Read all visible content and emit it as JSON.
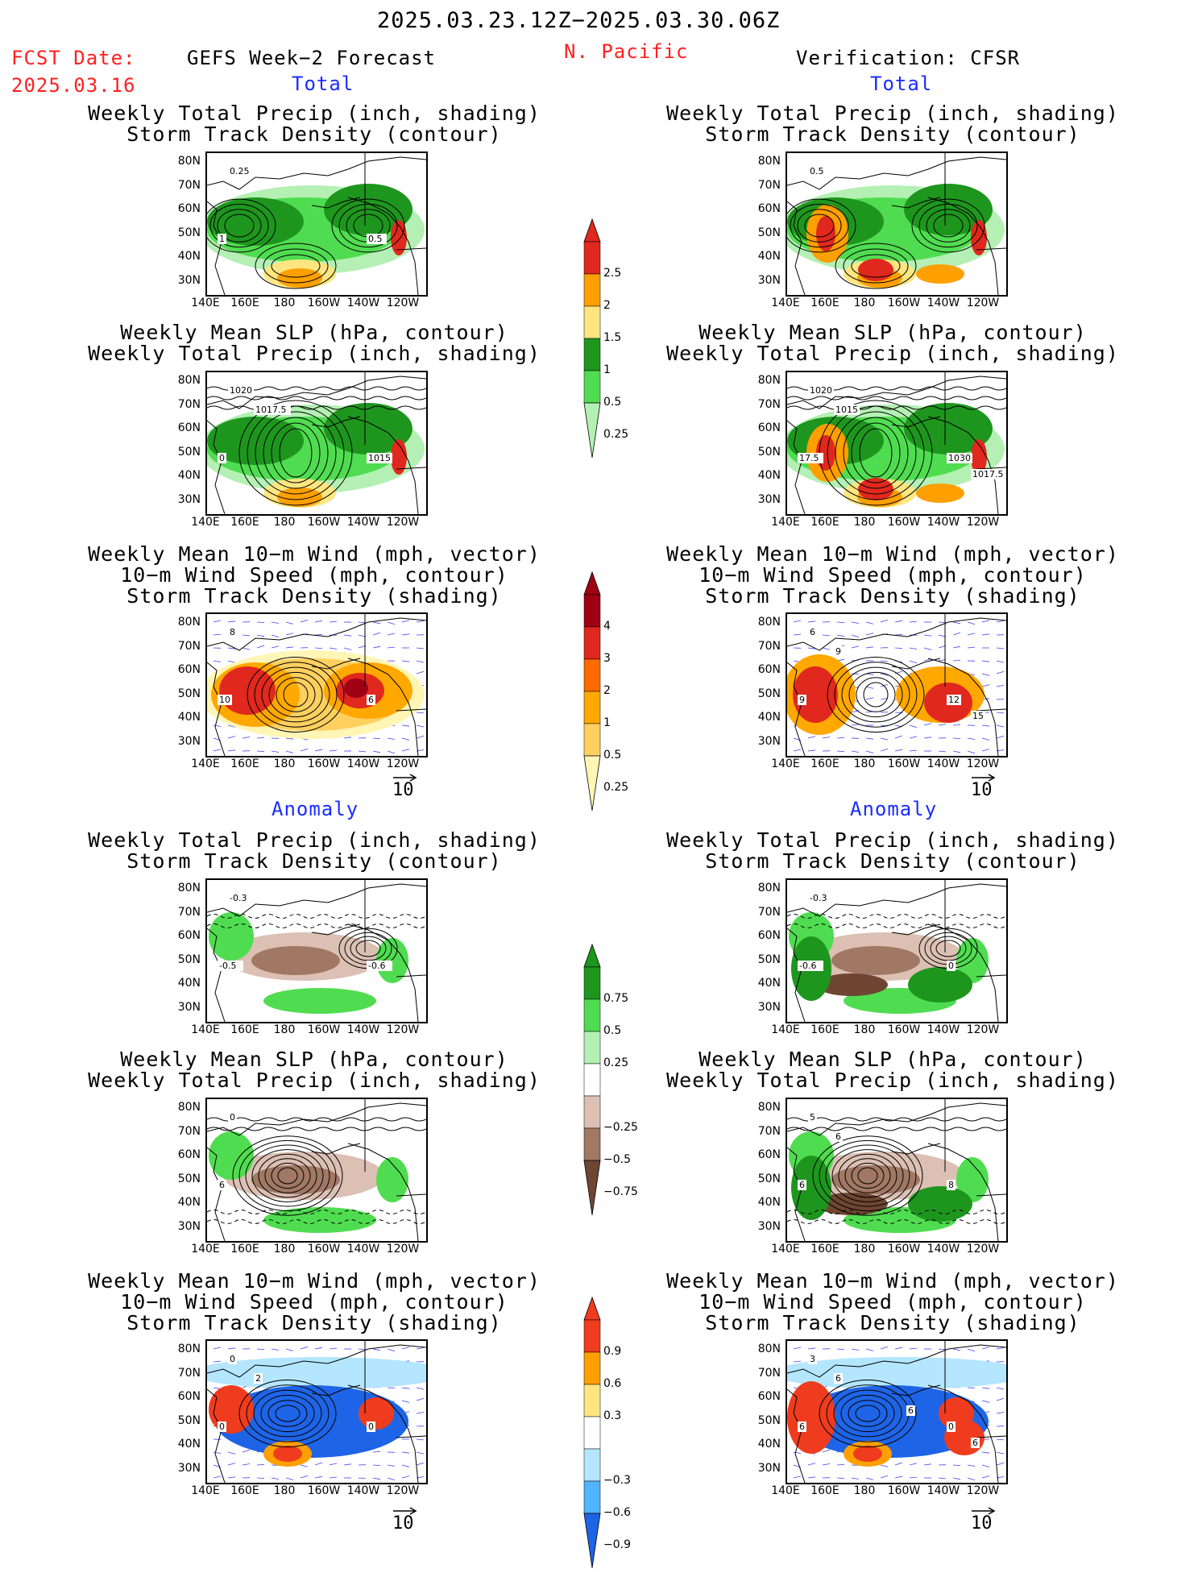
{
  "header": {
    "date_range": "2025.03.23.12Z−2025.03.30.06Z",
    "fcst_label": "FCST Date:",
    "fcst_date": "2025.03.16",
    "left_title": "GEFS Week−2 Forecast",
    "region": "N. Pacific",
    "right_title": "Verification: CFSR"
  },
  "sections": {
    "total": "Total",
    "anomaly": "Anomaly"
  },
  "panel_titles": {
    "precip_track": [
      "Weekly Total Precip (inch, shading)",
      "Storm Track Density (contour)"
    ],
    "slp_precip": [
      "Weekly Mean SLP (hPa, contour)",
      "Weekly Total Precip (inch, shading)"
    ],
    "wind_track": [
      "Weekly Mean 10−m Wind (mph, vector)",
      "10−m Wind Speed (mph, contour)",
      "Storm Track Density (shading)"
    ]
  },
  "axes": {
    "lat_labels": [
      "80N",
      "70N",
      "60N",
      "50N",
      "40N",
      "30N"
    ],
    "lon_labels": [
      "140E",
      "160E",
      "180",
      "160W",
      "140W",
      "120W"
    ]
  },
  "vector_ref": "10",
  "colorbars": {
    "precip_total": {
      "labels": [
        "2.5",
        "2",
        "1.5",
        "1",
        "0.5",
        "0.25"
      ],
      "colors": [
        "#e0281e",
        "#ff9f00",
        "#ffe680",
        "#1e961e",
        "#50dc50",
        "#b4f0b4"
      ]
    },
    "track_total": {
      "labels": [
        "4",
        "3",
        "2",
        "1",
        "0.5",
        "0.25"
      ],
      "colors": [
        "#a00014",
        "#e0281e",
        "#ff6a00",
        "#ffa800",
        "#ffd060",
        "#fff5b4"
      ]
    },
    "precip_anom": {
      "labels": [
        "0.75",
        "0.5",
        "0.25",
        "−0.25",
        "−0.5",
        "−0.75"
      ],
      "colors": [
        "#1e961e",
        "#50dc50",
        "#b4f0b4",
        "#ffffff",
        "#dcc0b4",
        "#a07864",
        "#6e4632"
      ]
    },
    "track_anom": {
      "labels": [
        "0.9",
        "0.6",
        "0.3",
        "−0.3",
        "−0.6",
        "−0.9"
      ],
      "colors": [
        "#f03c1e",
        "#ff9f00",
        "#ffe680",
        "#ffffff",
        "#b4e6ff",
        "#50b4ff",
        "#1e64e6"
      ]
    }
  },
  "contour_labels": {
    "fc_precip": [
      "0.25",
      "1",
      "0.5"
    ],
    "obs_precip": [
      "0.5"
    ],
    "fc_slp": [
      "1020",
      "0",
      "1015",
      "1017.5"
    ],
    "obs_slp": [
      "1020",
      "17.5",
      "1030",
      "1015",
      "1017.5"
    ],
    "fc_wind": [
      "8",
      "10",
      "6"
    ],
    "obs_wind": [
      "6",
      "9",
      "12",
      "9",
      "15"
    ],
    "fc_precip_anom": [
      "-0.3",
      "-0.5",
      "-0.6"
    ],
    "obs_precip_anom": [
      "-0.3",
      "-0.6",
      "0"
    ],
    "fc_slp_anom": [
      "0",
      "6"
    ],
    "obs_slp_anom": [
      "5",
      "6",
      "8",
      "6"
    ],
    "fc_wind_anom": [
      "0",
      "0",
      "0",
      "2"
    ],
    "obs_wind_anom": [
      "3",
      "6",
      "0",
      "6",
      "6",
      "6"
    ]
  }
}
